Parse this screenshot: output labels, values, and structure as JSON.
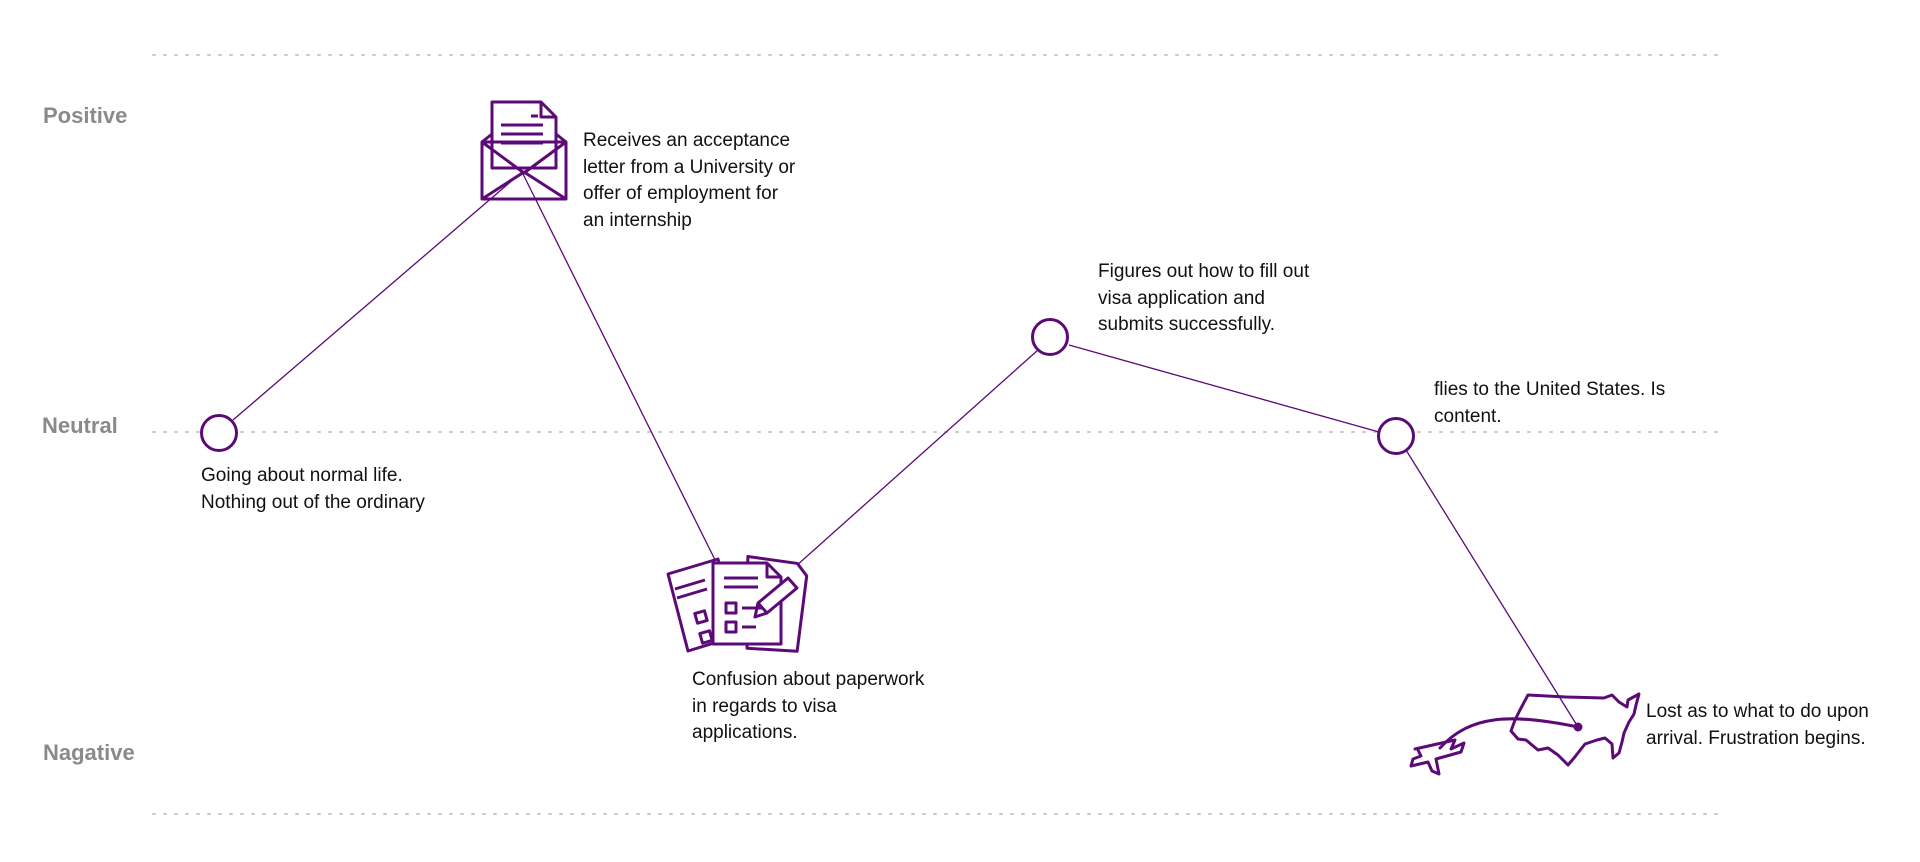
{
  "levels": {
    "positive": "Positive",
    "neutral": "Neutral",
    "negative": "Nagative"
  },
  "colors": {
    "accent": "#5b0a78",
    "gridline": "#c9c9c9",
    "level_label": "#8a8a8a",
    "text": "#111111"
  },
  "steps": [
    {
      "id": "normal-life",
      "level": "neutral",
      "marker": "circle",
      "lines": [
        "Going about normal life.",
        "Nothing out of the ordinary"
      ]
    },
    {
      "id": "acceptance",
      "level": "positive",
      "marker": "envelope-letter-icon",
      "lines": [
        "Receives an acceptance",
        "letter from a University or",
        "offer of employment for",
        "an internship"
      ]
    },
    {
      "id": "paperwork",
      "level": "negative",
      "marker": "paperwork-forms-icon",
      "lines": [
        "Confusion about paperwork",
        "in regards to visa",
        "applications."
      ]
    },
    {
      "id": "visa-submitted",
      "level": "slightly-positive",
      "marker": "circle",
      "lines": [
        "Figures out how to fill out",
        "visa application and",
        "submits successfully."
      ]
    },
    {
      "id": "flies",
      "level": "neutral",
      "marker": "circle",
      "lines": [
        "flies to the United States. Is",
        "content."
      ]
    },
    {
      "id": "arrival",
      "level": "negative",
      "marker": "usa-map-airplane-icon",
      "lines": [
        "Lost as to what to do upon",
        "arrival. Frustration begins."
      ]
    }
  ]
}
